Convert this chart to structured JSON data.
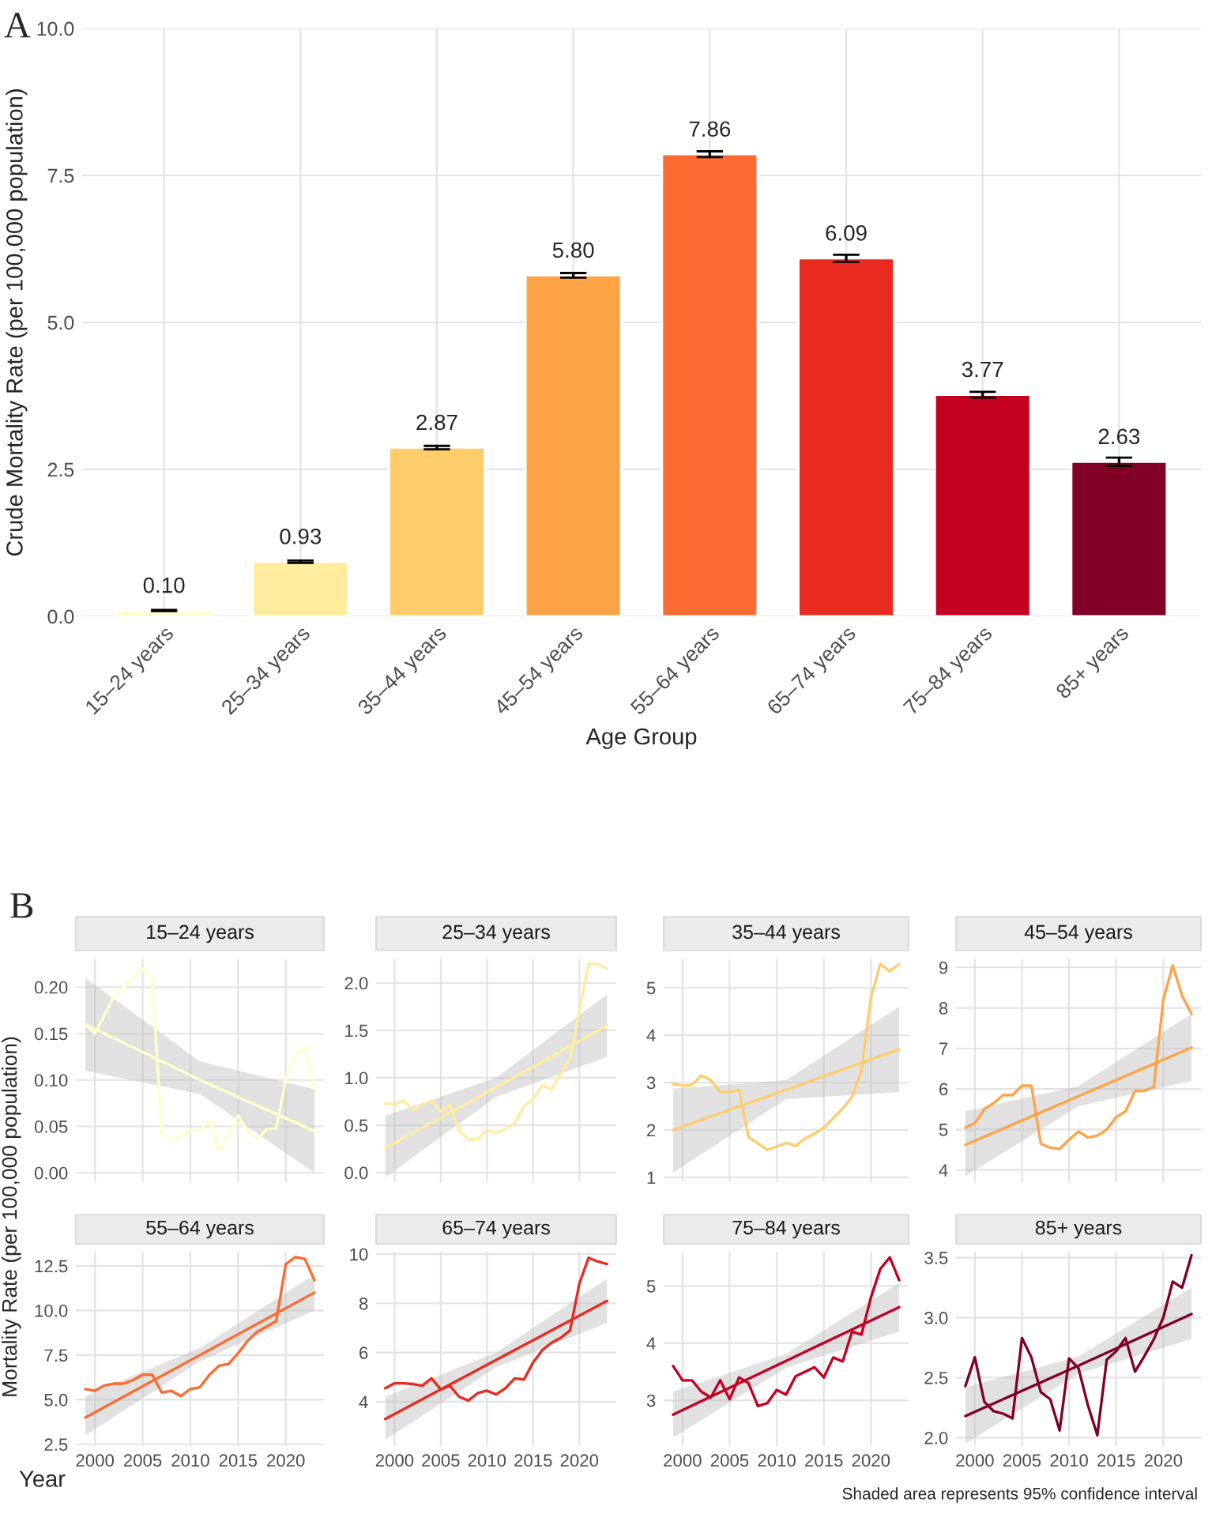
{
  "chart_data": [
    {
      "type": "bar",
      "xlabel": "Age Group",
      "ylabel": "Crude Mortality Rate (per 100,000 population)",
      "annotations": [
        "A"
      ],
      "categories": [
        "15–24 years",
        "25–34 years",
        "35–44 years",
        "45–54 years",
        "55–64 years",
        "65–74 years",
        "75–84 years",
        "85+ years"
      ],
      "values": [
        0.1,
        0.93,
        2.87,
        5.8,
        7.86,
        6.09,
        3.77,
        2.63
      ],
      "errors": [
        0.01,
        0.02,
        0.03,
        0.04,
        0.05,
        0.06,
        0.05,
        0.07
      ],
      "colors": [
        "#ffffcc",
        "#ffec9e",
        "#fecc6a",
        "#fea446",
        "#fd6b33",
        "#e92a21",
        "#c3001f",
        "#800026"
      ],
      "ylim": [
        0,
        10
      ],
      "yticks": [
        {
          "value": 0,
          "label": "0.0"
        },
        {
          "value": 2.5,
          "label": "2.5"
        },
        {
          "value": 5,
          "label": "5.0"
        },
        {
          "value": 7.5,
          "label": "7.5"
        },
        {
          "value": 10,
          "label": "10.0"
        }
      ],
      "value_labels": [
        "0.10",
        "0.93",
        "2.87",
        "5.80",
        "7.86",
        "6.09",
        "3.77",
        "2.63"
      ],
      "grid": true
    },
    {
      "type": "line",
      "title": "15–24 years",
      "ylabel": "Mortality Rate (per 100,000 population)",
      "annotations": [
        "B"
      ],
      "x": [
        1999,
        2000,
        2001,
        2002,
        2003,
        2004,
        2005,
        2006,
        2007,
        2008,
        2009,
        2010,
        2011,
        2012,
        2013,
        2014,
        2015,
        2016,
        2017,
        2018,
        2019,
        2020,
        2021,
        2022,
        2023
      ],
      "series": [
        {
          "color": "#ffffcc",
          "values": [
            0.16,
            0.15,
            0.17,
            0.19,
            0.2,
            0.21,
            0.22,
            0.21,
            0.042,
            0.035,
            0.04,
            0.045,
            0.046,
            0.057,
            0.025,
            0.04,
            0.062,
            0.045,
            0.036,
            0.047,
            0.048,
            0.1,
            0.13,
            0.135,
            0.09
          ]
        },
        {
          "type": "line",
          "color": "#ffffcc",
          "x": [
            1999,
            2011,
            2023
          ],
          "values": [
            0.16,
            0.1,
            0.045
          ],
          "lower": [
            0.11,
            0.085,
            0.0
          ],
          "upper": [
            0.21,
            0.12,
            0.09
          ]
        }
      ],
      "xlim": [
        1998,
        2024
      ],
      "xticks": [
        2000,
        2005,
        2010,
        2015,
        2020
      ],
      "ylim": [
        -0.01,
        0.23
      ],
      "yticks": [
        {
          "value": 0,
          "label": "0.00"
        },
        {
          "value": 0.05,
          "label": "0.05"
        },
        {
          "value": 0.1,
          "label": "0.10"
        },
        {
          "value": 0.15,
          "label": "0.15"
        },
        {
          "value": 0.2,
          "label": "0.20"
        }
      ],
      "grid": true,
      "tick_labels": "y"
    },
    {
      "type": "line",
      "title": "25–34 years",
      "x": [
        1999,
        2000,
        2001,
        2002,
        2003,
        2004,
        2005,
        2006,
        2007,
        2008,
        2009,
        2010,
        2011,
        2012,
        2013,
        2014,
        2015,
        2016,
        2017,
        2018,
        2019,
        2020,
        2021,
        2022,
        2023
      ],
      "series": [
        {
          "color": "#ffec9e",
          "values": [
            0.73,
            0.72,
            0.76,
            0.66,
            0.72,
            0.76,
            0.64,
            0.72,
            0.44,
            0.35,
            0.35,
            0.45,
            0.42,
            0.46,
            0.52,
            0.7,
            0.78,
            0.92,
            0.88,
            1.05,
            1.2,
            1.7,
            2.2,
            2.2,
            2.15
          ]
        },
        {
          "type": "line",
          "color": "#ffec9e",
          "x": [
            1999,
            2011,
            2023
          ],
          "values": [
            0.26,
            0.9,
            1.55
          ],
          "lower": [
            -0.05,
            0.8,
            1.22
          ],
          "upper": [
            0.6,
            1.0,
            1.88
          ]
        }
      ],
      "xlim": [
        1998,
        2024
      ],
      "xticks": [
        2000,
        2005,
        2010,
        2015,
        2020
      ],
      "ylim": [
        -0.1,
        2.25
      ],
      "yticks": [
        {
          "value": 0,
          "label": "0.0"
        },
        {
          "value": 0.5,
          "label": "0.5"
        },
        {
          "value": 1,
          "label": "1.0"
        },
        {
          "value": 1.5,
          "label": "1.5"
        },
        {
          "value": 2,
          "label": "2.0"
        }
      ],
      "grid": true,
      "tick_labels": "y"
    },
    {
      "type": "line",
      "title": "35–44 years",
      "x": [
        1999,
        2000,
        2001,
        2002,
        2003,
        2004,
        2005,
        2006,
        2007,
        2008,
        2009,
        2010,
        2011,
        2012,
        2013,
        2014,
        2015,
        2016,
        2017,
        2018,
        2019,
        2020,
        2021,
        2022,
        2023
      ],
      "series": [
        {
          "color": "#fecc6a",
          "values": [
            2.97,
            2.93,
            2.95,
            3.15,
            3.05,
            2.8,
            2.8,
            2.85,
            1.85,
            1.72,
            1.58,
            1.65,
            1.73,
            1.66,
            1.82,
            1.92,
            2.05,
            2.25,
            2.45,
            2.7,
            3.25,
            4.8,
            5.5,
            5.35,
            5.5
          ]
        },
        {
          "type": "line",
          "color": "#fecc6a",
          "x": [
            1999,
            2011,
            2023
          ],
          "values": [
            2.0,
            2.85,
            3.7
          ],
          "lower": [
            1.1,
            2.65,
            2.8
          ],
          "upper": [
            2.87,
            3.05,
            4.6
          ]
        }
      ],
      "xlim": [
        1998,
        2024
      ],
      "xticks": [
        2000,
        2005,
        2010,
        2015,
        2020
      ],
      "ylim": [
        0.9,
        5.6
      ],
      "yticks": [
        1,
        2,
        3,
        4,
        5
      ],
      "grid": true,
      "tick_labels": "y"
    },
    {
      "type": "line",
      "title": "45–54 years",
      "x": [
        1999,
        2000,
        2001,
        2002,
        2003,
        2004,
        2005,
        2006,
        2007,
        2008,
        2009,
        2010,
        2011,
        2012,
        2013,
        2014,
        2015,
        2016,
        2017,
        2018,
        2019,
        2020,
        2021,
        2022,
        2023
      ],
      "series": [
        {
          "color": "#fea446",
          "values": [
            5.05,
            5.15,
            5.5,
            5.65,
            5.85,
            5.85,
            6.08,
            6.08,
            4.65,
            4.55,
            4.52,
            4.75,
            4.95,
            4.8,
            4.85,
            5.0,
            5.3,
            5.45,
            5.95,
            5.95,
            6.05,
            8.2,
            9.05,
            8.3,
            7.85
          ]
        },
        {
          "type": "line",
          "color": "#fea446",
          "x": [
            1999,
            2011,
            2023
          ],
          "values": [
            4.62,
            5.82,
            7.02
          ],
          "lower": [
            3.85,
            5.57,
            6.2
          ],
          "upper": [
            5.45,
            6.07,
            7.85
          ]
        }
      ],
      "xlim": [
        1998,
        2024
      ],
      "xticks": [
        2000,
        2005,
        2010,
        2015,
        2020
      ],
      "ylim": [
        3.7,
        9.2
      ],
      "yticks": [
        4,
        5,
        6,
        7,
        8,
        9
      ],
      "grid": true,
      "tick_labels": "y"
    },
    {
      "type": "line",
      "title": "55–64 years",
      "xlabel": "Year",
      "x": [
        1999,
        2000,
        2001,
        2002,
        2003,
        2004,
        2005,
        2006,
        2007,
        2008,
        2009,
        2010,
        2011,
        2012,
        2013,
        2014,
        2015,
        2016,
        2017,
        2018,
        2019,
        2020,
        2021,
        2022,
        2023
      ],
      "series": [
        {
          "color": "#fd6b33",
          "values": [
            5.6,
            5.5,
            5.8,
            5.9,
            5.9,
            6.1,
            6.4,
            6.4,
            5.4,
            5.5,
            5.2,
            5.6,
            5.7,
            6.4,
            6.9,
            7.0,
            7.6,
            8.3,
            8.8,
            9.1,
            9.4,
            12.6,
            13.0,
            12.9,
            11.7
          ]
        },
        {
          "type": "line",
          "color": "#fd6b33",
          "x": [
            1999,
            2011,
            2023
          ],
          "values": [
            4.0,
            7.5,
            11.0
          ],
          "lower": [
            3.0,
            7.15,
            10.0
          ],
          "upper": [
            5.2,
            7.9,
            12.0
          ]
        }
      ],
      "xlim": [
        1998,
        2024
      ],
      "xticks": [
        2000,
        2005,
        2010,
        2015,
        2020
      ],
      "ylim": [
        2.4,
        13.3
      ],
      "yticks": [
        {
          "value": 2.5,
          "label": "2.5"
        },
        {
          "value": 5,
          "label": "5.0"
        },
        {
          "value": 7.5,
          "label": "7.5"
        },
        {
          "value": 10,
          "label": "10.0"
        },
        {
          "value": 12.5,
          "label": "12.5"
        }
      ],
      "grid": true
    },
    {
      "type": "line",
      "title": "65–74 years",
      "x": [
        1999,
        2000,
        2001,
        2002,
        2003,
        2004,
        2005,
        2006,
        2007,
        2008,
        2009,
        2010,
        2011,
        2012,
        2013,
        2014,
        2015,
        2016,
        2017,
        2018,
        2019,
        2020,
        2021,
        2022,
        2023
      ],
      "series": [
        {
          "color": "#e92a21",
          "values": [
            4.55,
            4.75,
            4.75,
            4.72,
            4.65,
            4.95,
            4.5,
            4.65,
            4.2,
            4.05,
            4.35,
            4.45,
            4.3,
            4.55,
            4.95,
            4.9,
            5.6,
            6.1,
            6.4,
            6.6,
            6.9,
            8.8,
            9.85,
            9.7,
            9.6
          ]
        },
        {
          "type": "line",
          "color": "#e92a21",
          "x": [
            1999,
            2011,
            2023
          ],
          "values": [
            3.3,
            5.7,
            8.1
          ],
          "lower": [
            2.45,
            5.4,
            7.2
          ],
          "upper": [
            4.2,
            6.0,
            9.0
          ]
        }
      ],
      "xlim": [
        1998,
        2024
      ],
      "xticks": [
        2000,
        2005,
        2010,
        2015,
        2020
      ],
      "ylim": [
        2.2,
        10.1
      ],
      "yticks": [
        4,
        6,
        8,
        10
      ],
      "grid": true
    },
    {
      "type": "line",
      "title": "75–84 years",
      "x": [
        1999,
        2000,
        2001,
        2002,
        2003,
        2004,
        2005,
        2006,
        2007,
        2008,
        2009,
        2010,
        2011,
        2012,
        2013,
        2014,
        2015,
        2016,
        2017,
        2018,
        2019,
        2020,
        2021,
        2022,
        2023
      ],
      "series": [
        {
          "color": "#c3001f",
          "values": [
            3.6,
            3.35,
            3.35,
            3.15,
            3.05,
            3.35,
            3.02,
            3.4,
            3.3,
            2.9,
            2.95,
            3.18,
            3.1,
            3.42,
            3.5,
            3.58,
            3.4,
            3.75,
            3.68,
            4.2,
            4.15,
            4.8,
            5.3,
            5.5,
            5.1
          ]
        },
        {
          "type": "line",
          "color": "#c3001f",
          "x": [
            1999,
            2011,
            2023
          ],
          "values": [
            2.75,
            3.69,
            4.63
          ],
          "lower": [
            2.35,
            3.57,
            4.2
          ],
          "upper": [
            3.15,
            3.81,
            5.05
          ]
        }
      ],
      "xlim": [
        1998,
        2024
      ],
      "xticks": [
        2000,
        2005,
        2010,
        2015,
        2020
      ],
      "ylim": [
        2.2,
        5.6
      ],
      "yticks": [
        3,
        4,
        5
      ],
      "grid": true
    },
    {
      "type": "line",
      "title": "85+ years",
      "annotations": [
        "Shaded area represents 95% confidence interval"
      ],
      "x": [
        1999,
        2000,
        2001,
        2002,
        2003,
        2004,
        2005,
        2006,
        2007,
        2008,
        2009,
        2010,
        2011,
        2012,
        2013,
        2014,
        2015,
        2016,
        2017,
        2018,
        2019,
        2020,
        2021,
        2022,
        2023
      ],
      "series": [
        {
          "color": "#800026",
          "values": [
            2.43,
            2.67,
            2.3,
            2.22,
            2.2,
            2.16,
            2.83,
            2.67,
            2.38,
            2.32,
            2.06,
            2.66,
            2.58,
            2.27,
            2.02,
            2.65,
            2.72,
            2.83,
            2.55,
            2.68,
            2.82,
            3.0,
            3.3,
            3.25,
            3.52
          ]
        },
        {
          "type": "line",
          "color": "#800026",
          "x": [
            1999,
            2011,
            2023
          ],
          "values": [
            2.18,
            2.6,
            3.03
          ],
          "lower": [
            1.95,
            2.535,
            2.82
          ],
          "upper": [
            2.42,
            2.675,
            3.25
          ]
        }
      ],
      "xlim": [
        1998,
        2024
      ],
      "xticks": [
        2000,
        2005,
        2010,
        2015,
        2020
      ],
      "ylim": [
        1.93,
        3.55
      ],
      "yticks": [
        {
          "value": 2,
          "label": "2.0"
        },
        {
          "value": 2.5,
          "label": "2.5"
        },
        {
          "value": 3,
          "label": "3.0"
        },
        {
          "value": 3.5,
          "label": "3.5"
        }
      ],
      "grid": true
    }
  ]
}
